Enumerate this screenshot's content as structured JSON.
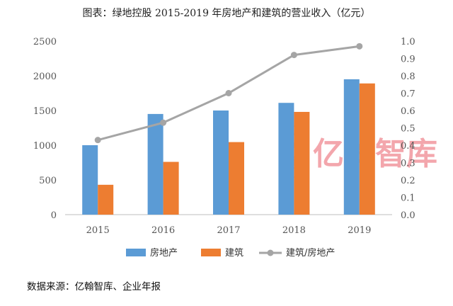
{
  "page": {
    "source_note": "数据来源：亿翰智库、企业年报"
  },
  "watermark": {
    "logo_char_top": "亿",
    "logo_char_bottom": "翰",
    "text": "亿翰智库",
    "color": "#e8505b"
  },
  "chart_data": {
    "type": "bar",
    "title": "图表：绿地控股 2015-2019 年房地产和建筑的营业收入（亿元）",
    "categories": [
      "2015",
      "2016",
      "2017",
      "2018",
      "2019"
    ],
    "series": [
      {
        "name": "房地产",
        "type": "bar",
        "axis": "left",
        "color": "#5b9bd5",
        "values": [
          1000,
          1450,
          1500,
          1610,
          1950
        ]
      },
      {
        "name": "建筑",
        "type": "bar",
        "axis": "left",
        "color": "#ed7d31",
        "values": [
          430,
          760,
          1045,
          1480,
          1890
        ]
      },
      {
        "name": "建筑/房地产",
        "type": "line",
        "axis": "right",
        "color": "#a5a5a5",
        "values": [
          0.43,
          0.53,
          0.7,
          0.92,
          0.97
        ]
      }
    ],
    "y_left": {
      "min": 0,
      "max": 2500,
      "ticks": [
        "0",
        "500",
        "1000",
        "1500",
        "2000",
        "2500"
      ]
    },
    "y_right": {
      "min": 0,
      "max": 1.0,
      "ticks": [
        "0.0",
        "0.1",
        "0.2",
        "0.3",
        "0.4",
        "0.5",
        "0.6",
        "0.7",
        "0.8",
        "0.9",
        "1.0"
      ]
    },
    "grid": false,
    "legend_position": "bottom"
  }
}
